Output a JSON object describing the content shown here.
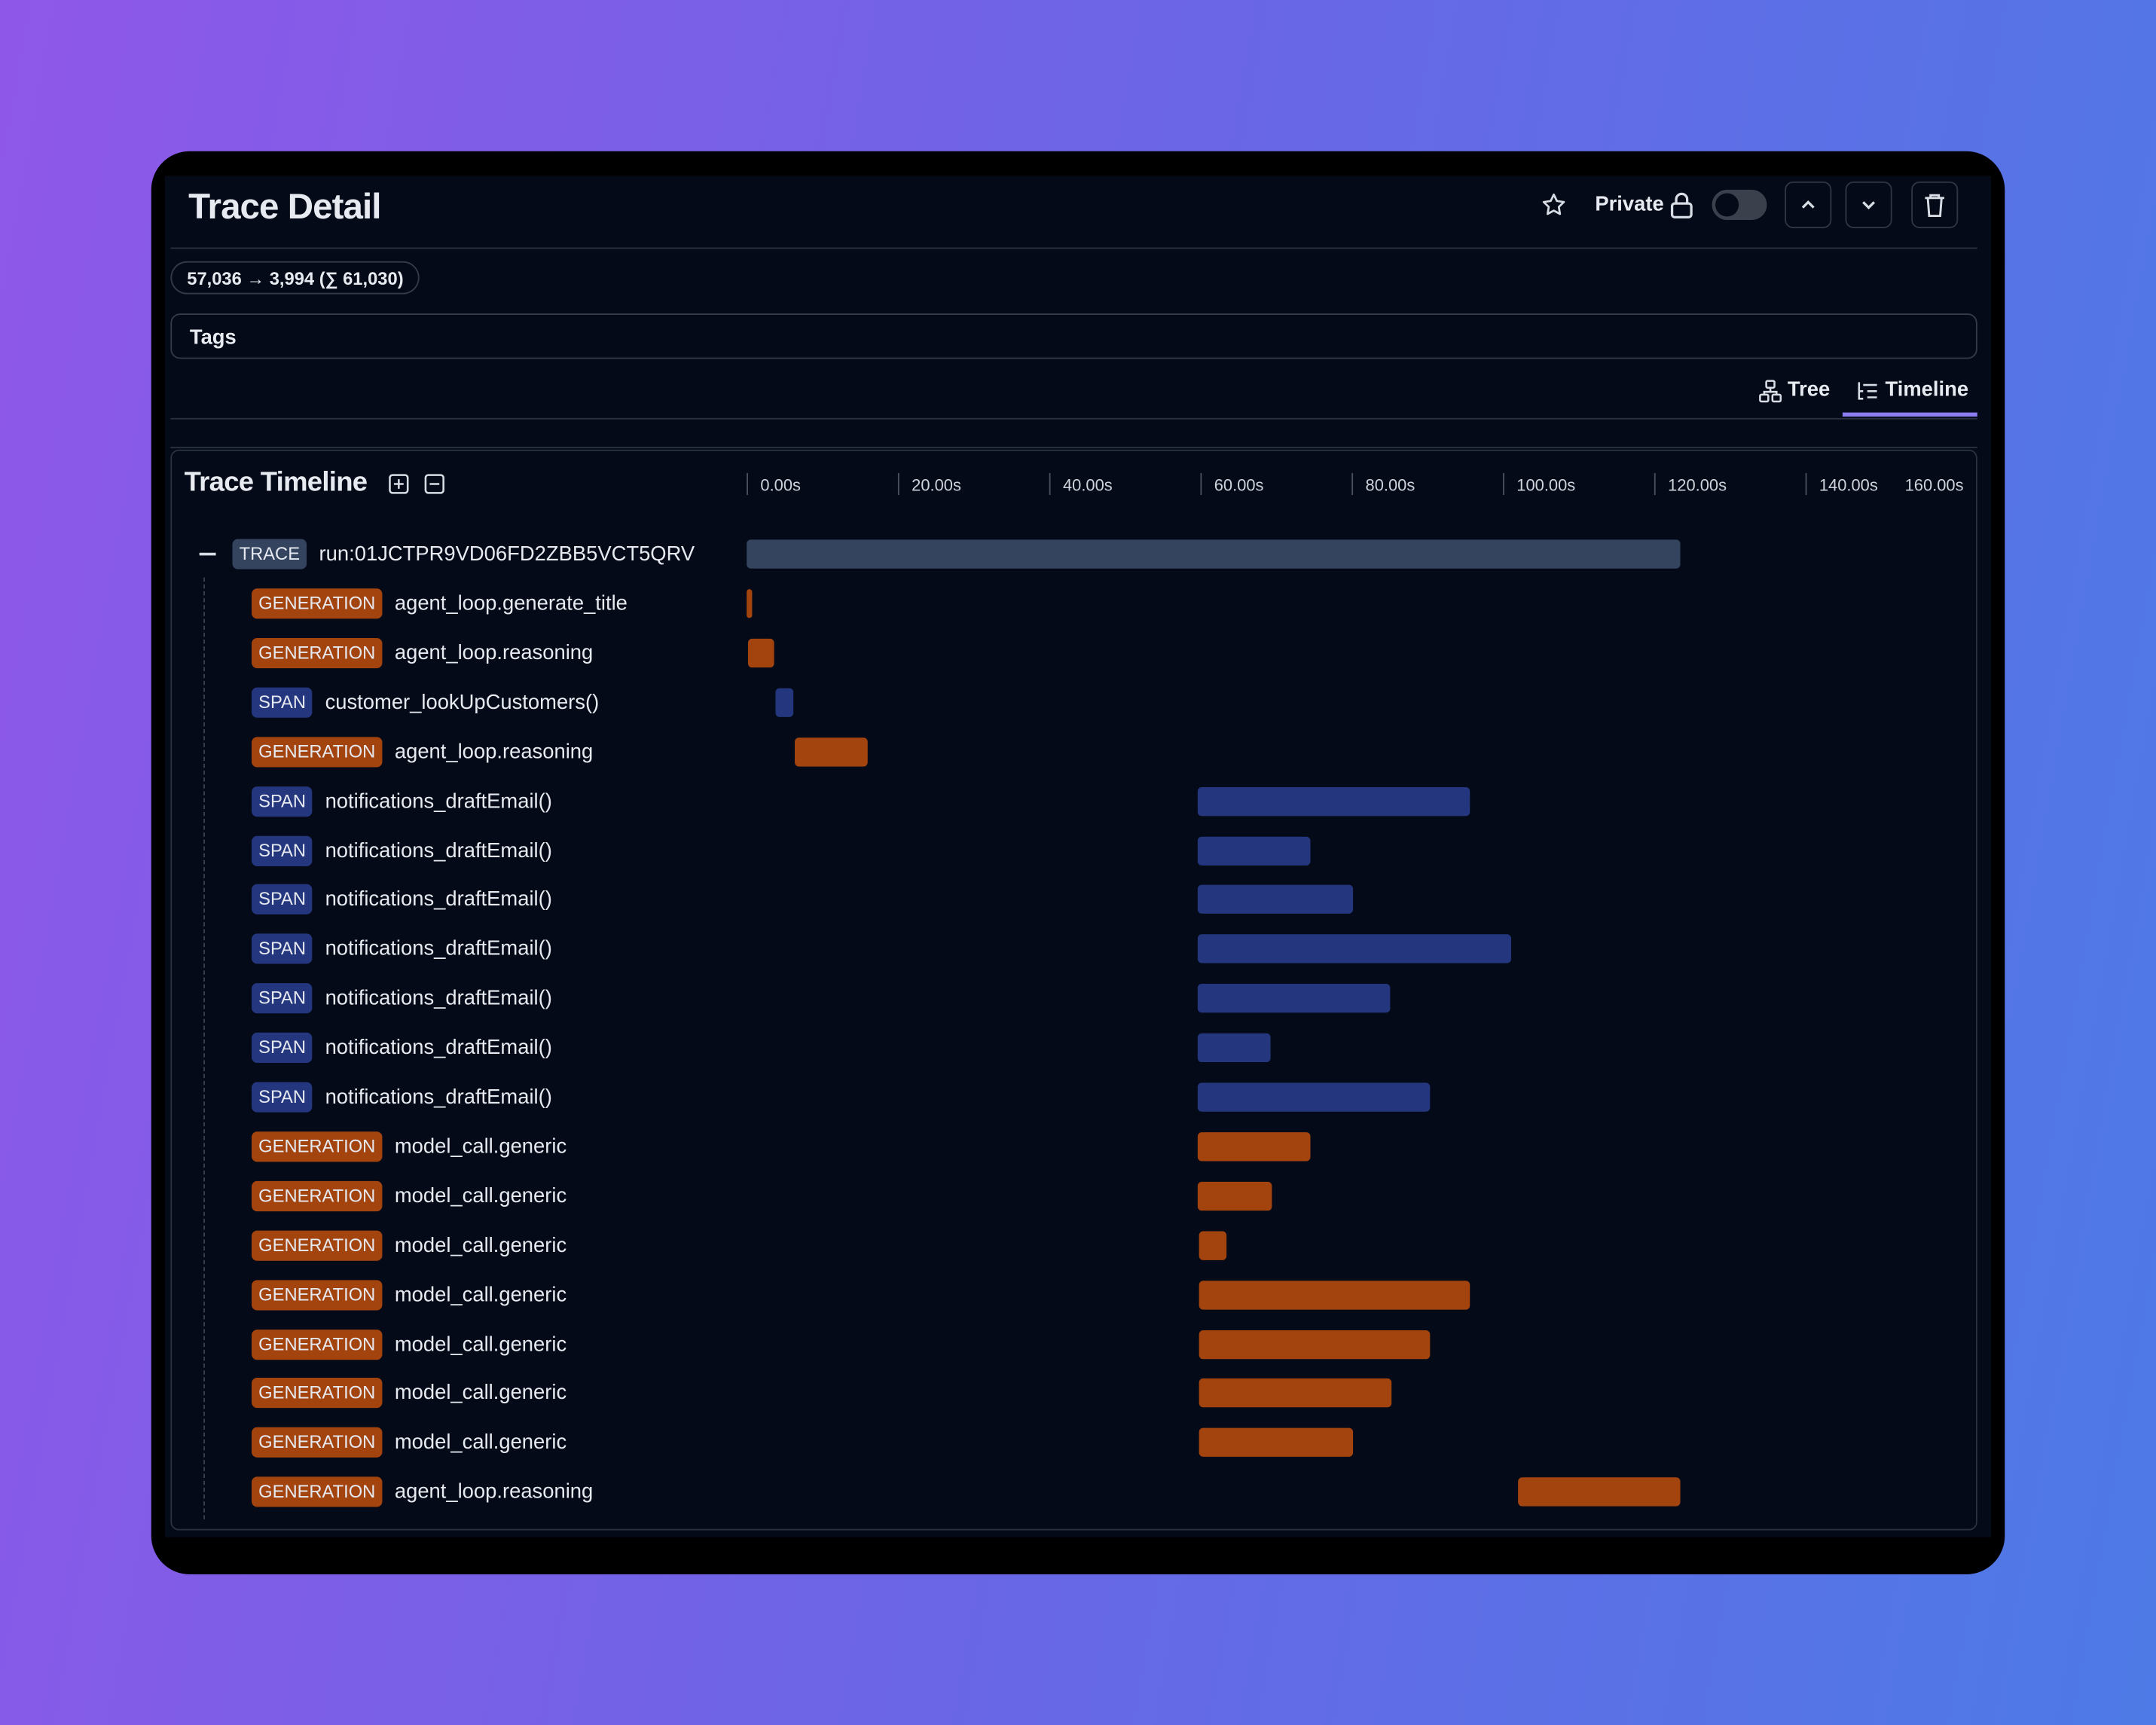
{
  "header": {
    "title": "Trace Detail",
    "private_label": "Private"
  },
  "usage": "57,036 → 3,994 (∑ 61,030)",
  "tags_label": "Tags",
  "view_tabs": [
    {
      "label": "Tree",
      "active": false
    },
    {
      "label": "Timeline",
      "active": true
    }
  ],
  "timeline": {
    "title": "Trace Timeline",
    "xlim": [
      0,
      160
    ],
    "xticks": [
      {
        "value": 0,
        "label": "0.00s"
      },
      {
        "value": 20,
        "label": "20.00s"
      },
      {
        "value": 40,
        "label": "40.00s"
      },
      {
        "value": 60,
        "label": "60.00s"
      },
      {
        "value": 80,
        "label": "80.00s"
      },
      {
        "value": 100,
        "label": "100.00s"
      },
      {
        "value": 120,
        "label": "120.00s"
      },
      {
        "value": 140,
        "label": "140.00s"
      },
      {
        "value": 160,
        "label": "160.00s"
      }
    ],
    "kind_colors": {
      "TRACE": "#34435e",
      "GENERATION": "#a3440f",
      "SPAN": "#24377e"
    },
    "items": [
      {
        "kind": "TRACE",
        "name": "run:01JCTPR9VD06FD2ZBB5VCT5QRV",
        "start": 0,
        "end": 123.5
      },
      {
        "kind": "GENERATION",
        "name": "agent_loop.generate_title",
        "start": 0,
        "end": 0.7
      },
      {
        "kind": "GENERATION",
        "name": "agent_loop.reasoning",
        "start": 0.2,
        "end": 3.6
      },
      {
        "kind": "SPAN",
        "name": "customer_lookUpCustomers()",
        "start": 3.8,
        "end": 6.2
      },
      {
        "kind": "GENERATION",
        "name": "agent_loop.reasoning",
        "start": 6.4,
        "end": 16.0
      },
      {
        "kind": "SPAN",
        "name": "notifications_draftEmail()",
        "start": 59.6,
        "end": 95.6
      },
      {
        "kind": "SPAN",
        "name": "notifications_draftEmail()",
        "start": 59.6,
        "end": 74.5
      },
      {
        "kind": "SPAN",
        "name": "notifications_draftEmail()",
        "start": 59.6,
        "end": 80.2
      },
      {
        "kind": "SPAN",
        "name": "notifications_draftEmail()",
        "start": 59.6,
        "end": 101.1
      },
      {
        "kind": "SPAN",
        "name": "notifications_draftEmail()",
        "start": 59.6,
        "end": 85.1
      },
      {
        "kind": "SPAN",
        "name": "notifications_draftEmail()",
        "start": 59.6,
        "end": 69.3
      },
      {
        "kind": "SPAN",
        "name": "notifications_draftEmail()",
        "start": 59.6,
        "end": 90.4
      },
      {
        "kind": "GENERATION",
        "name": "model_call.generic",
        "start": 59.6,
        "end": 74.5
      },
      {
        "kind": "GENERATION",
        "name": "model_call.generic",
        "start": 59.6,
        "end": 69.5
      },
      {
        "kind": "GENERATION",
        "name": "model_call.generic",
        "start": 59.8,
        "end": 63.5
      },
      {
        "kind": "GENERATION",
        "name": "model_call.generic",
        "start": 59.8,
        "end": 95.6
      },
      {
        "kind": "GENERATION",
        "name": "model_call.generic",
        "start": 59.8,
        "end": 90.4
      },
      {
        "kind": "GENERATION",
        "name": "model_call.generic",
        "start": 59.8,
        "end": 85.3
      },
      {
        "kind": "GENERATION",
        "name": "model_call.generic",
        "start": 59.8,
        "end": 80.2
      },
      {
        "kind": "GENERATION",
        "name": "agent_loop.reasoning",
        "start": 102.0,
        "end": 123.5
      }
    ]
  }
}
